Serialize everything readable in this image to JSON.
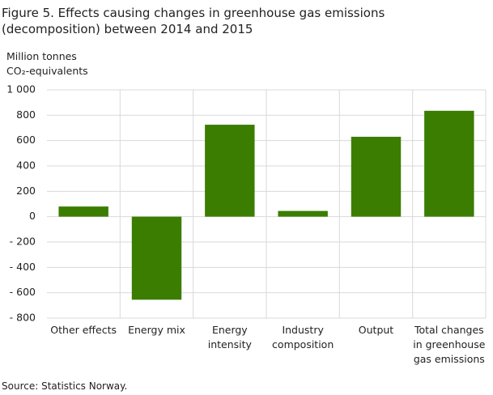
{
  "chart_data": {
    "type": "bar",
    "title": "Figure 5. Effects causing changes in greenhouse gas emissions (decomposition) between 2014 and 2015",
    "y_label": [
      "Million tonnes",
      "CO₂-equivalents"
    ],
    "categories": [
      "Other effects",
      "Energy mix",
      "Energy intensity",
      "Industry composition",
      "Output",
      "Total changes in greenhouse gas emissions"
    ],
    "values": [
      80,
      -655,
      725,
      45,
      630,
      835
    ],
    "color": "#3a7d00",
    "ylim": [
      -800,
      1000
    ],
    "yticks": [
      {
        "value": 1000,
        "label": "1 000"
      },
      800,
      600,
      400,
      200,
      0,
      {
        "value": -200,
        "label": "- 200"
      },
      {
        "value": -400,
        "label": "- 400"
      },
      {
        "value": -600,
        "label": "- 600"
      },
      {
        "value": -800,
        "label": "- 800"
      }
    ],
    "grid": true,
    "source": "Source: Statistics Norway."
  }
}
